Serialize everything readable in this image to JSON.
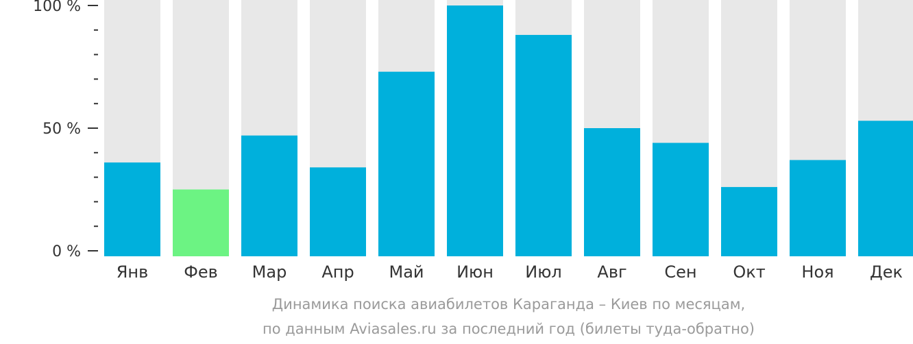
{
  "chart_data": {
    "type": "bar",
    "categories": [
      "Янв",
      "Фев",
      "Мар",
      "Апр",
      "Май",
      "Июн",
      "Июл",
      "Авг",
      "Сен",
      "Окт",
      "Ноя",
      "Дек"
    ],
    "values": [
      36,
      25,
      47,
      34,
      73,
      100,
      88,
      50,
      44,
      26,
      37,
      53
    ],
    "highlight_index": 1,
    "ylim": [
      0,
      100
    ],
    "yticks": [
      {
        "value": 100,
        "label": "100 %"
      },
      {
        "value": 50,
        "label": "50 %"
      },
      {
        "value": 0,
        "label": "0 %"
      }
    ],
    "minor_ticks_per_step": 5,
    "caption": [
      "Динамика поиска авиабилетов Караганда – Киев по месяцам,",
      "по данным Aviasales.ru за последний год (билеты туда-обратно)"
    ],
    "colors": {
      "bar": "#00b0dc",
      "highlight": "#6cf383",
      "track": "#e8e8e8",
      "axis": "#333333",
      "caption": "#9a9a9a"
    },
    "grid": false,
    "legend": "none"
  }
}
